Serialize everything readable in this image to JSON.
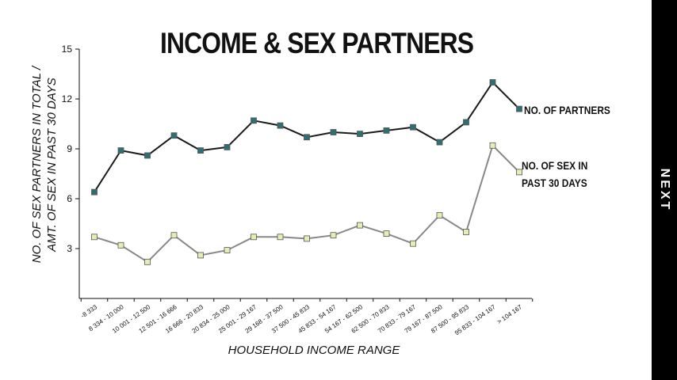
{
  "chart_data": {
    "type": "line",
    "title": "INCOME & SEX PARTNERS",
    "xlabel": "HOUSEHOLD INCOME RANGE",
    "ylabel_line1": "NO. OF SEX PARTNERS IN TOTAL /",
    "ylabel_line2": "AMT. OF SEX IN PAST 30 DAYS",
    "ylim": [
      0,
      15
    ],
    "yticks": [
      3,
      6,
      9,
      12,
      15
    ],
    "categories": [
      "-8 333",
      "8 334 - 10 000",
      "10 001 - 12 500",
      "12 501 - 16 666",
      "16 666 - 20 833",
      "20 834 - 25 000",
      "25 001 - 29 167",
      "29 168 - 37 500",
      "37 500 - 45 833",
      "45 833 - 54 167",
      "54 167 - 62 500",
      "62 500 - 70 833",
      "70 833 - 79 167",
      "79 167 - 87 500",
      "87 500 - 95 833",
      "95 833 - 104 167",
      "> 104 167"
    ],
    "series": [
      {
        "name": "NO. OF PARTNERS",
        "color": "#2e6f74",
        "line_color": "#1a1a1a",
        "values": [
          6.4,
          8.9,
          8.6,
          9.8,
          8.9,
          9.1,
          10.7,
          10.4,
          9.7,
          10.0,
          9.9,
          10.1,
          10.3,
          9.4,
          10.6,
          13.0,
          11.4
        ]
      },
      {
        "name": "NO. OF SEX  IN PAST 30 DAYS",
        "name_line1": "NO. OF SEX  IN",
        "name_line2": "PAST 30 DAYS",
        "color": "#e6ecb4",
        "line_color": "#888888",
        "values": [
          3.7,
          3.2,
          2.2,
          3.8,
          2.6,
          2.9,
          3.7,
          3.7,
          3.6,
          3.8,
          4.4,
          3.9,
          3.3,
          5.0,
          4.0,
          9.2,
          7.6
        ]
      }
    ]
  },
  "nav": {
    "next_label": "NEXT"
  }
}
